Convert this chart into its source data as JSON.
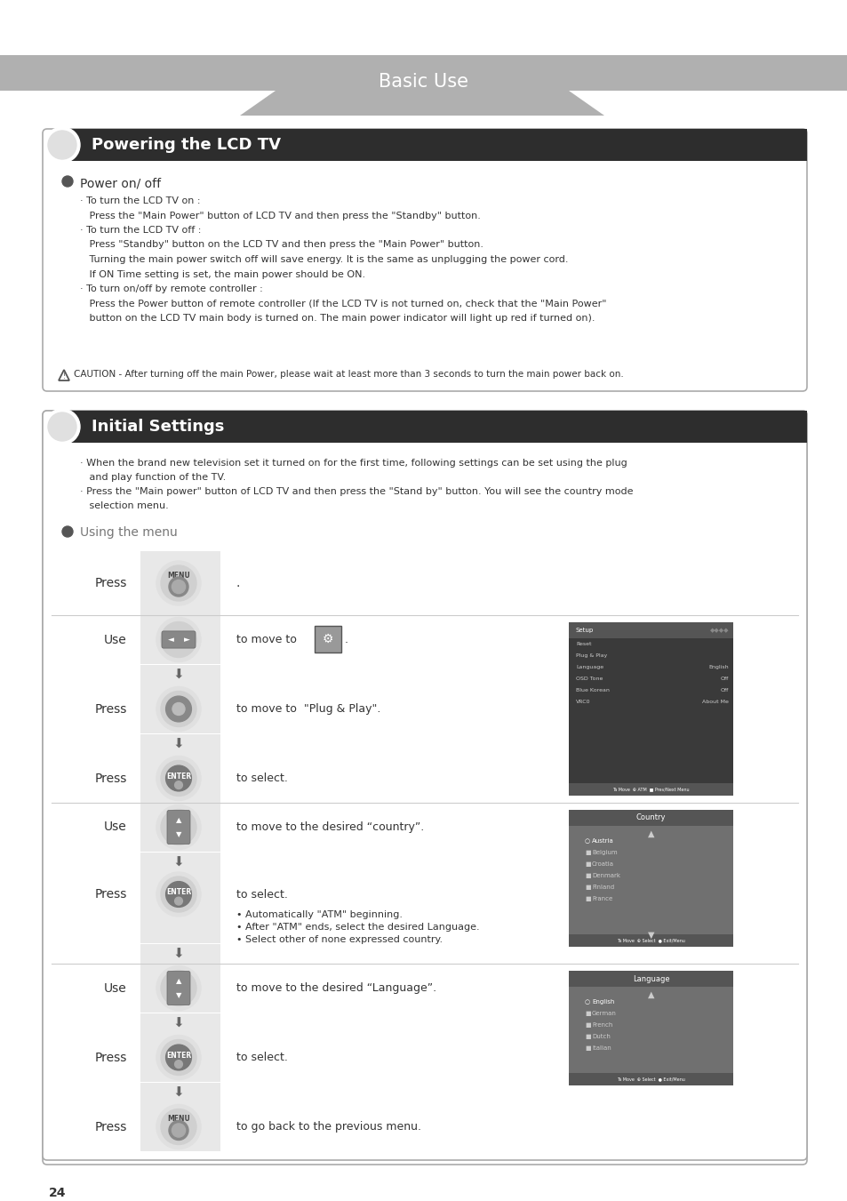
{
  "page_bg": "#ffffff",
  "header_bg": "#aaaaaa",
  "header_text": "Basic Use",
  "section1_title": "Powering the LCD TV",
  "section2_title": "Initial Settings",
  "power_on_off_title": "Power on/ off",
  "power_on_text": [
    "· To turn the LCD TV on :",
    "   Press the \"Main Power\" button of LCD TV and then press the \"Standby\" button.",
    "· To turn the LCD TV off :",
    "   Press \"Standby\" button on the LCD TV and then press the \"Main Power\" button.",
    "   Turning the main power switch off will save energy. It is the same as unplugging the power cord.",
    "   If ON Time setting is set, the main power should be ON.",
    "· To turn on/off by remote controller :",
    "   Press the Power button of remote controller (If the LCD TV is not turned on, check that the \"Main Power\"",
    "   button on the LCD TV main body is turned on. The main power indicator will light up red if turned on)."
  ],
  "caution_text": "CAUTION - After turning off the main Power, please wait at least more than 3 seconds to turn the main power back on.",
  "initial_intro": [
    "· When the brand new television set it turned on for the first time, following settings can be set using the plug",
    "   and play function of the TV.",
    "· Press the \"Main power\" button of LCD TV and then press the \"Stand by\" button. You will see the country mode",
    "   selection menu."
  ],
  "using_menu_title": "Using the menu",
  "page_number": "24",
  "footnote_bullets": [
    "• Automatically \"ATM\" beginning.",
    "• After \"ATM\" ends, select the desired Language.",
    "• Select other of none expressed country."
  ],
  "countries": [
    "Austria",
    "Belgium",
    "Croatia",
    "Denmark",
    "Finland",
    "France"
  ],
  "languages": [
    "English",
    "German",
    "French",
    "Dutch",
    "Italian"
  ]
}
